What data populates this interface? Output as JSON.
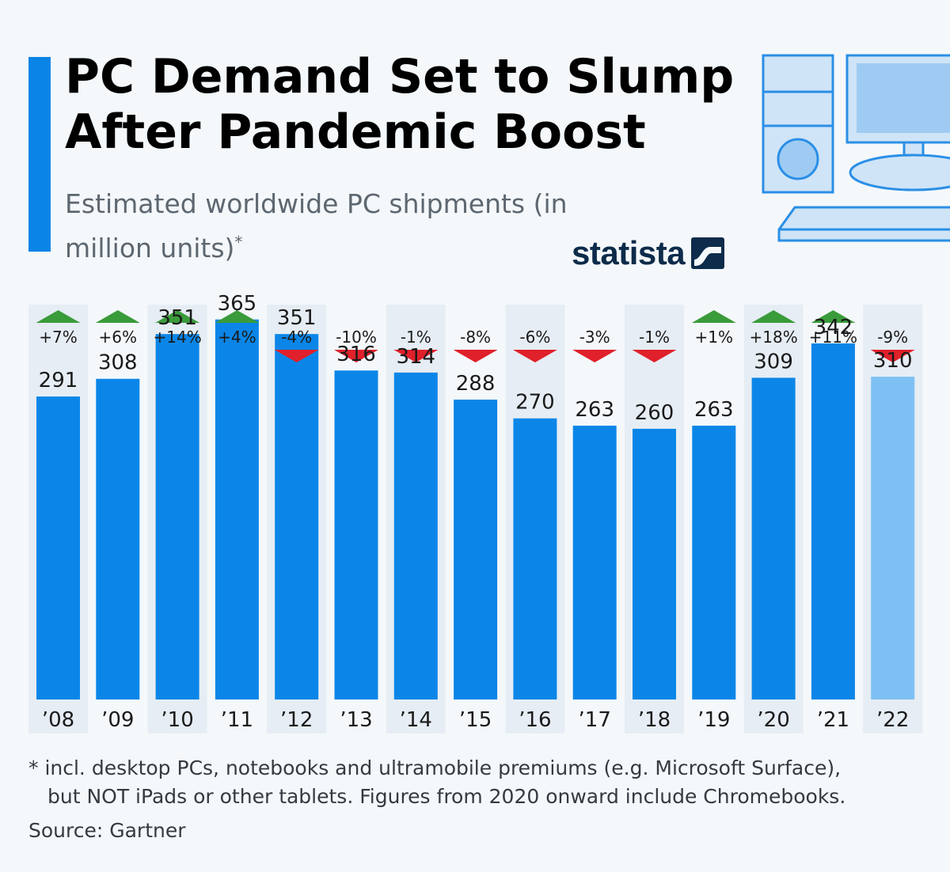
{
  "header": {
    "title": "PC Demand Set to Slump After Pandemic Boost",
    "subtitle": "Estimated worldwide PC shipments (in million units)",
    "subtitle_marker": "*",
    "brand": "statista"
  },
  "colors": {
    "bar": "#0b86e8",
    "bar_estimate": "#7ec0f3",
    "increase": "#3a9b3a",
    "decrease": "#e0202a",
    "accent": "#0a84e6"
  },
  "chart_data": {
    "type": "bar",
    "title": "PC Demand Set to Slump After Pandemic Boost",
    "subtitle": "Estimated worldwide PC shipments (in million units)*",
    "xlabel": "",
    "ylabel": "",
    "ylim": [
      0,
      380
    ],
    "grid": false,
    "categories": [
      "’08",
      "’09",
      "’10",
      "’11",
      "’12",
      "’13",
      "’14",
      "’15",
      "’16",
      "’17",
      "’18",
      "’19",
      "’20",
      "’21",
      "’22"
    ],
    "values": [
      291,
      308,
      351,
      365,
      351,
      316,
      314,
      288,
      270,
      263,
      260,
      263,
      309,
      342,
      310
    ],
    "changes": [
      "+7%",
      "+6%",
      "+14%",
      "+4%",
      "-4%",
      "-10%",
      "-1%",
      "-8%",
      "-6%",
      "-3%",
      "-1%",
      "+1%",
      "+18%",
      "+11%",
      "-9%"
    ],
    "directions": [
      "up",
      "up",
      "up",
      "up",
      "down",
      "down",
      "down",
      "down",
      "down",
      "down",
      "down",
      "up",
      "up",
      "up",
      "down"
    ],
    "estimated": [
      false,
      false,
      false,
      false,
      false,
      false,
      false,
      false,
      false,
      false,
      false,
      false,
      false,
      false,
      true
    ]
  },
  "footer": {
    "note_line1": "* incl. desktop PCs, notebooks and ultramobile premiums (e.g. Microsoft Surface),",
    "note_line2": "but NOT iPads or other tablets. Figures from 2020 onward include Chromebooks.",
    "source": "Source: Gartner"
  }
}
